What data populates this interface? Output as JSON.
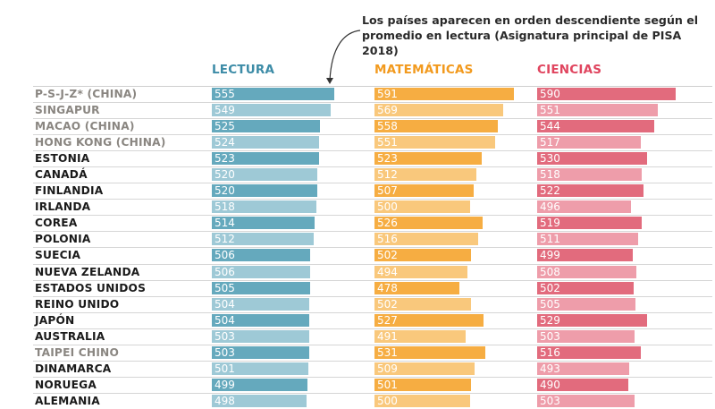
{
  "annotation": {
    "text": "Los países aparecen en orden descendiente según el promedio en lectura (Asignatura principal de PISA 2018)"
  },
  "colors": {
    "lectura_dark": "#65a9bd",
    "lectura_light": "#9ec9d6",
    "matematicas_dark": "#f6ad42",
    "matematicas_light": "#f9c87c",
    "ciencias_dark": "#e26b7d",
    "ciencias_light": "#ee9daa",
    "lectura_header": "#3d8ca7",
    "matematicas_header": "#f29a1e",
    "ciencias_header": "#e0455f",
    "country_dark": "#1a1a1a",
    "country_grey": "#8a8681"
  },
  "chart_data": {
    "type": "bar",
    "orientation": "horizontal",
    "title": "",
    "annotation": "Los países aparecen en orden descendiente según el promedio en lectura (Asignatura principal de PISA 2018)",
    "categories": [
      "P-S-J-Z* (CHINA)",
      "SINGAPUR",
      "MACAO (CHINA)",
      "HONG KONG (CHINA)",
      "ESTONIA",
      "CANADÁ",
      "FINLANDIA",
      "IRLANDA",
      "COREA",
      "POLONIA",
      "SUECIA",
      "NUEVA ZELANDA",
      "ESTADOS UNIDOS",
      "REINO UNIDO",
      "JAPÓN",
      "AUSTRALIA",
      "TAIPEI CHINO",
      "DINAMARCA",
      "NORUEGA",
      "ALEMANIA"
    ],
    "grey_categories": [
      "P-S-J-Z* (CHINA)",
      "SINGAPUR",
      "MACAO (CHINA)",
      "HONG KONG (CHINA)",
      "TAIPEI CHINO"
    ],
    "series": [
      {
        "name": "LECTURA",
        "values": [
          555,
          549,
          525,
          524,
          523,
          520,
          520,
          518,
          514,
          512,
          506,
          506,
          505,
          504,
          504,
          503,
          503,
          501,
          499,
          498
        ]
      },
      {
        "name": "MATEMÁTICAS",
        "values": [
          591,
          569,
          558,
          551,
          523,
          512,
          507,
          500,
          526,
          516,
          502,
          494,
          478,
          502,
          527,
          491,
          531,
          509,
          501,
          500
        ]
      },
      {
        "name": "CIENCIAS",
        "values": [
          590,
          551,
          544,
          517,
          530,
          518,
          522,
          496,
          519,
          511,
          499,
          508,
          502,
          505,
          529,
          503,
          516,
          493,
          490,
          503
        ]
      }
    ],
    "xlabel": "",
    "ylabel": "",
    "grid": false,
    "legend": "column headers top"
  }
}
